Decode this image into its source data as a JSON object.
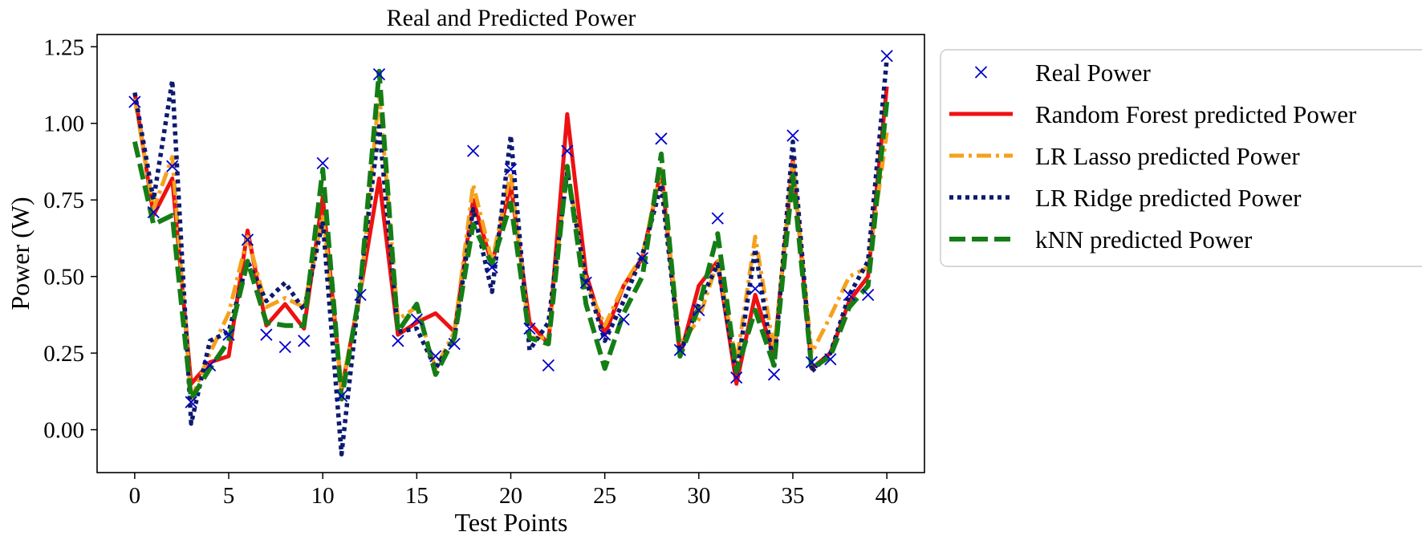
{
  "chart_data": {
    "type": "line",
    "title": "Real and Predicted Power",
    "xlabel": "Test Points",
    "ylabel": "Power (W)",
    "xlim": [
      -2,
      42
    ],
    "ylim": [
      -0.14,
      1.29
    ],
    "xticks": [
      0,
      5,
      10,
      15,
      20,
      25,
      30,
      35,
      40
    ],
    "yticks": [
      0.0,
      0.25,
      0.5,
      0.75,
      1.0,
      1.25
    ],
    "ytick_labels": [
      "0.00",
      "0.25",
      "0.50",
      "0.75",
      "1.00",
      "1.25"
    ],
    "grid": false,
    "legend_position": "outside-right",
    "x": [
      0,
      1,
      2,
      3,
      4,
      5,
      6,
      7,
      8,
      9,
      10,
      11,
      12,
      13,
      14,
      15,
      16,
      17,
      18,
      19,
      20,
      21,
      22,
      23,
      24,
      25,
      26,
      27,
      28,
      29,
      30,
      31,
      32,
      33,
      34,
      35,
      36,
      37,
      38,
      39,
      40
    ],
    "series": [
      {
        "name": "Real Power",
        "kind": "marker",
        "color": "#0000cc",
        "values": [
          1.07,
          0.71,
          0.86,
          0.09,
          0.21,
          0.31,
          0.62,
          0.31,
          0.27,
          0.29,
          0.87,
          0.11,
          0.44,
          1.16,
          0.29,
          0.36,
          0.24,
          0.28,
          0.91,
          0.53,
          0.85,
          0.33,
          0.21,
          0.91,
          0.48,
          0.31,
          0.36,
          0.56,
          0.95,
          0.26,
          0.39,
          0.69,
          0.17,
          0.46,
          0.18,
          0.96,
          0.22,
          0.23,
          0.44,
          0.44,
          1.22
        ]
      },
      {
        "name": "Random Forest predicted Power",
        "kind": "solid",
        "color": "#ee1111",
        "values": [
          1.1,
          0.7,
          0.82,
          0.15,
          0.22,
          0.24,
          0.65,
          0.34,
          0.41,
          0.33,
          0.76,
          0.13,
          0.45,
          0.82,
          0.31,
          0.35,
          0.38,
          0.32,
          0.75,
          0.54,
          0.8,
          0.35,
          0.28,
          1.03,
          0.51,
          0.31,
          0.47,
          0.56,
          0.85,
          0.24,
          0.47,
          0.55,
          0.15,
          0.44,
          0.24,
          0.88,
          0.2,
          0.25,
          0.42,
          0.5,
          1.12
        ]
      },
      {
        "name": "LR Lasso predicted Power",
        "kind": "dashdot",
        "color": "#f5a11c",
        "values": [
          1.08,
          0.72,
          0.89,
          0.1,
          0.25,
          0.38,
          0.63,
          0.4,
          0.43,
          0.4,
          0.7,
          0.14,
          0.44,
          1.1,
          0.36,
          0.4,
          0.2,
          0.32,
          0.8,
          0.55,
          0.84,
          0.3,
          0.3,
          0.86,
          0.48,
          0.34,
          0.47,
          0.57,
          0.85,
          0.28,
          0.36,
          0.55,
          0.22,
          0.63,
          0.26,
          0.87,
          0.25,
          0.37,
          0.5,
          0.53,
          0.97
        ]
      },
      {
        "name": "LR Ridge predicted Power",
        "kind": "dotted",
        "color": "#0d1a6e",
        "values": [
          1.1,
          0.75,
          1.14,
          0.02,
          0.29,
          0.32,
          0.55,
          0.42,
          0.48,
          0.39,
          0.68,
          -0.08,
          0.48,
          0.99,
          0.32,
          0.33,
          0.2,
          0.3,
          0.72,
          0.45,
          0.96,
          0.26,
          0.35,
          0.84,
          0.49,
          0.29,
          0.42,
          0.57,
          0.8,
          0.25,
          0.41,
          0.54,
          0.18,
          0.59,
          0.2,
          0.94,
          0.19,
          0.25,
          0.44,
          0.55,
          1.21
        ]
      },
      {
        "name": "kNN predicted Power",
        "kind": "dashed",
        "color": "#157d15",
        "values": [
          0.94,
          0.67,
          0.7,
          0.1,
          0.2,
          0.29,
          0.55,
          0.35,
          0.34,
          0.34,
          0.85,
          0.1,
          0.46,
          1.17,
          0.32,
          0.41,
          0.18,
          0.3,
          0.67,
          0.54,
          0.74,
          0.3,
          0.28,
          0.86,
          0.41,
          0.2,
          0.38,
          0.5,
          0.9,
          0.24,
          0.4,
          0.64,
          0.19,
          0.39,
          0.21,
          0.83,
          0.2,
          0.24,
          0.4,
          0.47,
          1.07
        ]
      }
    ]
  }
}
